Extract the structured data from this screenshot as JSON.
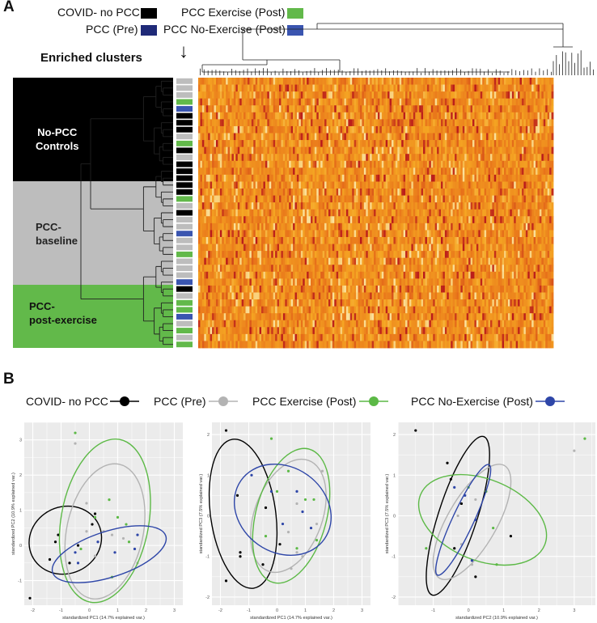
{
  "panel_a": {
    "letter": "A",
    "legend": [
      {
        "label": "COVID- no PCC",
        "color": "#000000"
      },
      {
        "label": "PCC (Pre)",
        "color": "#1f2a78"
      },
      {
        "label": "PCC Exercise (Post)",
        "color": "#62b94a"
      },
      {
        "label": "PCC No-Exercise (Post)",
        "color": "#3a55b0"
      }
    ],
    "enriched_title": "Enriched clusters",
    "arrow_glyph": "↓",
    "groups": [
      {
        "label_lines": [
          "No-PCC",
          "Controls"
        ],
        "color": "#000000",
        "text_color": "#ffffff"
      },
      {
        "label_lines": [
          "PCC-",
          "baseline"
        ],
        "color": "#bdbdbd",
        "text_color": "#222222"
      },
      {
        "label_lines": [
          "PCC-",
          "post-exercise"
        ],
        "color": "#62b94a",
        "text_color": "#111111"
      }
    ],
    "row_annotation_colors": [
      "#bdbdbd",
      "#bdbdbd",
      "#bdbdbd",
      "#62b94a",
      "#3a55b0",
      "#000000",
      "#000000",
      "#000000",
      "#bdbdbd",
      "#62b94a",
      "#000000",
      "#bdbdbd",
      "#000000",
      "#000000",
      "#000000",
      "#000000",
      "#000000",
      "#62b94a",
      "#bdbdbd",
      "#000000",
      "#bdbdbd",
      "#bdbdbd",
      "#3a55b0",
      "#bdbdbd",
      "#bdbdbd",
      "#62b94a",
      "#bdbdbd",
      "#bdbdbd",
      "#bdbdbd",
      "#3a55b0",
      "#000000",
      "#bdbdbd",
      "#62b94a",
      "#62b94a",
      "#3a55b0",
      "#bdbdbd",
      "#62b94a",
      "#bdbdbd",
      "#62b94a"
    ]
  },
  "panel_b": {
    "letter": "B",
    "legend": [
      {
        "label": "COVID- no PCC",
        "color": "#000000"
      },
      {
        "label": "PCC (Pre)",
        "color": "#b3b3b3"
      },
      {
        "label": "PCC Exercise (Post)",
        "color": "#5cb946"
      },
      {
        "label": "PCC No-Exercise (Post)",
        "color": "#2e46a8"
      }
    ]
  },
  "chart_data": [
    {
      "type": "heatmap",
      "title": "",
      "rows": 39,
      "columns": 180,
      "color_scale": [
        "#fbe6a6",
        "#f5a623",
        "#e8731a",
        "#b8181b"
      ],
      "row_groups": [
        "No-PCC Controls",
        "PCC-baseline",
        "PCC-post-exercise"
      ]
    },
    {
      "type": "scatter",
      "xlabel": "standardized PC1 (14.7% explained var.)",
      "ylabel": "standardized PC2 (10.9% explained var.)",
      "xlim": [
        -2.3,
        3.3
      ],
      "ylim": [
        -1.7,
        3.5
      ],
      "xticks": [
        "-2",
        "-1",
        "0",
        "1",
        "2",
        "3"
      ],
      "yticks": [
        "-1",
        "0",
        "1",
        "2",
        "3"
      ],
      "grid": true,
      "series": [
        {
          "name": "COVID- no PCC",
          "color": "#000000",
          "points": [
            [
              -2.1,
              -1.5
            ],
            [
              -1.2,
              0.1
            ],
            [
              -1.1,
              0.3
            ],
            [
              -0.4,
              0.0
            ],
            [
              0.1,
              0.6
            ],
            [
              -0.7,
              -0.5
            ],
            [
              -1.4,
              -0.4
            ],
            [
              0.2,
              0.9
            ]
          ],
          "ellipse": {
            "cx": -0.85,
            "cy": 0.15,
            "rx": 1.3,
            "ry": 0.95,
            "angle": 25
          }
        },
        {
          "name": "PCC (Pre)",
          "color": "#b3b3b3",
          "points": [
            [
              -0.1,
              1.2
            ],
            [
              0.5,
              0.4
            ],
            [
              1.2,
              0.2
            ],
            [
              -0.5,
              2.9
            ],
            [
              1.7,
              -0.5
            ],
            [
              0.8,
              0.3
            ],
            [
              0.2,
              -0.3
            ],
            [
              -0.1,
              0.4
            ]
          ],
          "ellipse": {
            "cx": 0.55,
            "cy": 0.4,
            "rx": 1.35,
            "ry": 1.95,
            "angle": -12
          }
        },
        {
          "name": "PCC Exercise (Post)",
          "color": "#5cb946",
          "points": [
            [
              -0.5,
              3.2
            ],
            [
              0.7,
              1.3
            ],
            [
              1.0,
              0.8
            ],
            [
              1.4,
              0.1
            ],
            [
              0.2,
              0.8
            ],
            [
              -0.3,
              -0.1
            ],
            [
              0.8,
              -0.9
            ],
            [
              1.3,
              0.6
            ]
          ],
          "ellipse": {
            "cx": 0.55,
            "cy": 0.7,
            "rx": 1.55,
            "ry": 2.35,
            "angle": -10
          }
        },
        {
          "name": "PCC No-Exercise (Post)",
          "color": "#2e46a8",
          "points": [
            [
              0.9,
              -0.2
            ],
            [
              1.6,
              -0.1
            ],
            [
              -0.4,
              -0.5
            ],
            [
              0.3,
              0.1
            ],
            [
              1.7,
              0.3
            ],
            [
              -0.5,
              -0.2
            ]
          ],
          "ellipse": {
            "cx": 0.7,
            "cy": -0.25,
            "rx": 2.1,
            "ry": 0.65,
            "angle": 18
          }
        }
      ]
    },
    {
      "type": "scatter",
      "xlabel": "standardized PC1 (14.7% explained var.)",
      "ylabel": "standardized PC3 (7.5% explained var.)",
      "xlim": [
        -2.3,
        3.3
      ],
      "ylim": [
        -2.2,
        2.3
      ],
      "xticks": [
        "-2",
        "-1",
        "0",
        "1",
        "2",
        "3"
      ],
      "yticks": [
        "-2",
        "-1",
        "0",
        "1",
        "2"
      ],
      "grid": true,
      "series": [
        {
          "name": "COVID- no PCC",
          "color": "#000000",
          "points": [
            [
              -1.8,
              2.1
            ],
            [
              -1.4,
              0.5
            ],
            [
              -1.3,
              -0.9
            ],
            [
              -1.3,
              -1.0
            ],
            [
              -1.8,
              -1.6
            ],
            [
              -0.4,
              0.2
            ],
            [
              -0.5,
              -1.2
            ],
            [
              0.1,
              -0.7
            ]
          ],
          "ellipse": {
            "cx": -1.2,
            "cy": 0.05,
            "rx": 1.15,
            "ry": 1.85,
            "angle": 8
          }
        },
        {
          "name": "PCC (Pre)",
          "color": "#b3b3b3",
          "points": [
            [
              0.7,
              0.3
            ],
            [
              1.6,
              1.1
            ],
            [
              0.4,
              -0.4
            ],
            [
              0.7,
              -0.9
            ],
            [
              1.4,
              -0.2
            ],
            [
              0.9,
              -1.0
            ],
            [
              0.5,
              -1.3
            ]
          ],
          "ellipse": {
            "cx": 0.4,
            "cy": 0.0,
            "rx": 1.2,
            "ry": 1.45,
            "angle": -20
          }
        },
        {
          "name": "PCC Exercise (Post)",
          "color": "#5cb946",
          "points": [
            [
              -0.2,
              1.9
            ],
            [
              0.4,
              1.1
            ],
            [
              1.3,
              0.4
            ],
            [
              -0.4,
              -0.5
            ],
            [
              1.4,
              -0.6
            ],
            [
              0.0,
              0.6
            ],
            [
              0.7,
              -0.8
            ],
            [
              1.0,
              0.4
            ]
          ],
          "ellipse": {
            "cx": 0.5,
            "cy": 0.0,
            "rx": 1.25,
            "ry": 1.7,
            "angle": -15
          }
        },
        {
          "name": "PCC No-Exercise (Post)",
          "color": "#2e46a8",
          "points": [
            [
              -0.9,
              1.0
            ],
            [
              0.9,
              0.1
            ],
            [
              0.7,
              0.6
            ],
            [
              0.2,
              -0.2
            ],
            [
              -0.2,
              0.6
            ],
            [
              1.2,
              -0.3
            ]
          ],
          "ellipse": {
            "cx": 0.2,
            "cy": 0.15,
            "rx": 1.8,
            "ry": 1.05,
            "angle": -35
          }
        }
      ]
    },
    {
      "type": "scatter",
      "xlabel": "standardized PC2 (10.9% explained var.)",
      "ylabel": "standardized PC3 (7.5% explained var.)",
      "xlim": [
        -2.0,
        3.6
      ],
      "ylim": [
        -2.2,
        2.3
      ],
      "xticks": [
        "-1",
        "0",
        "1",
        "2",
        "3"
      ],
      "yticks": [
        "-2",
        "-1",
        "0",
        "1",
        "2"
      ],
      "grid": true,
      "series": [
        {
          "name": "COVID- no PCC",
          "color": "#000000",
          "points": [
            [
              -1.5,
              2.1
            ],
            [
              -0.5,
              0.9
            ],
            [
              -0.6,
              1.3
            ],
            [
              -0.2,
              0.3
            ],
            [
              0.1,
              -1.1
            ],
            [
              0.2,
              -1.5
            ],
            [
              1.2,
              -0.5
            ],
            [
              -0.4,
              -0.8
            ]
          ],
          "ellipse": {
            "cx": -0.3,
            "cy": 0.0,
            "rx": 0.55,
            "ry": 2.05,
            "angle": -18
          }
        },
        {
          "name": "PCC (Pre)",
          "color": "#b3b3b3",
          "points": [
            [
              3.0,
              1.6
            ],
            [
              0.2,
              0.4
            ],
            [
              -0.2,
              -0.7
            ],
            [
              0.1,
              -1.2
            ],
            [
              -0.3,
              0.0
            ]
          ],
          "ellipse": {
            "cx": 0.1,
            "cy": -0.15,
            "rx": 0.7,
            "ry": 1.6,
            "angle": -30
          }
        },
        {
          "name": "PCC Exercise (Post)",
          "color": "#5cb946",
          "points": [
            [
              3.3,
              1.9
            ],
            [
              0.0,
              0.7
            ],
            [
              -1.2,
              -0.8
            ],
            [
              0.5,
              0.6
            ],
            [
              0.7,
              -0.3
            ],
            [
              0.8,
              -1.2
            ]
          ],
          "ellipse": {
            "cx": 0.4,
            "cy": -0.1,
            "rx": 1.9,
            "ry": 1.0,
            "angle": -22
          }
        },
        {
          "name": "PCC No-Exercise (Post)",
          "color": "#2e46a8",
          "points": [
            [
              -0.4,
              0.7
            ],
            [
              -0.1,
              0.5
            ],
            [
              0.2,
              -0.1
            ],
            [
              0.1,
              -1.1
            ]
          ],
          "ellipse": {
            "cx": -0.15,
            "cy": -0.1,
            "rx": 0.3,
            "ry": 1.5,
            "angle": -25
          }
        }
      ]
    }
  ]
}
